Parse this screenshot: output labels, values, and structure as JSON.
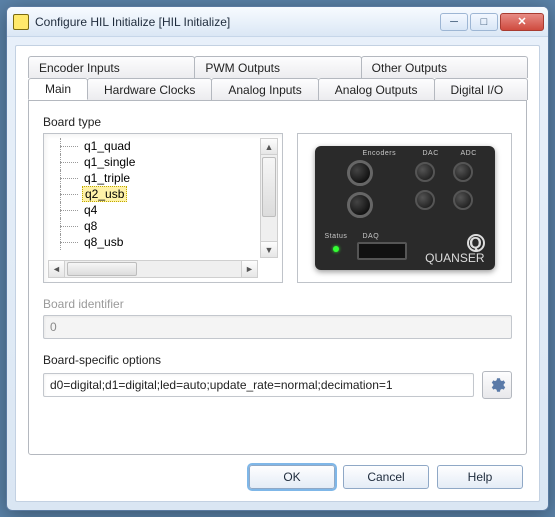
{
  "window": {
    "title": "Configure HIL Initialize [HIL Initialize]"
  },
  "tabs_row1": [
    {
      "label": "Encoder Inputs"
    },
    {
      "label": "PWM Outputs"
    },
    {
      "label": "Other Outputs"
    }
  ],
  "tabs_row2": [
    {
      "label": "Main",
      "active": true
    },
    {
      "label": "Hardware Clocks"
    },
    {
      "label": "Analog Inputs"
    },
    {
      "label": "Analog Outputs"
    },
    {
      "label": "Digital I/O"
    }
  ],
  "board_type": {
    "label": "Board type",
    "items": [
      "q1_quad",
      "q1_single",
      "q1_triple",
      "q2_usb",
      "q4",
      "q8",
      "q8_usb"
    ],
    "selected_index": 3
  },
  "board_preview": {
    "labels": {
      "encoders": "Encoders",
      "dac": "DAC",
      "adc": "ADC",
      "status": "Status",
      "daq": "DAQ"
    },
    "brand": "QUANSER"
  },
  "board_identifier": {
    "label": "Board identifier",
    "value": "0",
    "enabled": false
  },
  "board_options": {
    "label": "Board-specific options",
    "value": "d0=digital;d1=digital;led=auto;update_rate=normal;decimation=1"
  },
  "buttons": {
    "ok": "OK",
    "cancel": "Cancel",
    "help": "Help"
  },
  "colors": {
    "selection_bg": "#fff2a8",
    "window_bg_top": "#e9f1fa",
    "window_bg_bottom": "#dae6f3"
  }
}
